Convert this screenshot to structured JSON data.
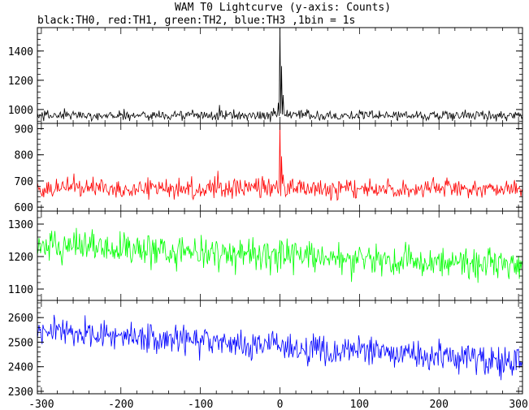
{
  "chart_data": {
    "type": "line",
    "title": "WAM T0 Lightcurve (y-axis: Counts)",
    "subtitle": "black:TH0, red:TH1, green:TH2, blue:TH3 ,1bin = 1s",
    "xlabel": "",
    "ylabel": "",
    "xlim": [
      -305,
      305
    ],
    "x_ticks": [
      -300,
      -200,
      -100,
      0,
      100,
      200,
      300
    ],
    "x_step": 1,
    "panels": [
      {
        "series_name": "TH0",
        "color": "#000000",
        "ylim": [
          905,
          1560
        ],
        "y_ticks": [
          1000,
          1200,
          1400
        ],
        "baseline": 960,
        "noise_amplitude": 35,
        "trend": [
          [
            -300,
            960
          ],
          [
            300,
            960
          ]
        ],
        "peaks": [
          [
            -2,
            1050
          ],
          [
            0,
            1560
          ],
          [
            2,
            1300
          ],
          [
            4,
            1100
          ],
          [
            -76,
            1030
          ]
        ]
      },
      {
        "series_name": "TH1",
        "color": "#ff0000",
        "ylim": [
          585,
          920
        ],
        "y_ticks": [
          600,
          700,
          800,
          900
        ],
        "baseline": 672,
        "noise_amplitude": 38,
        "trend": [
          [
            -300,
            675
          ],
          [
            300,
            668
          ]
        ],
        "peaks": [
          [
            -78,
            740
          ],
          [
            0,
            920
          ],
          [
            2,
            790
          ],
          [
            4,
            720
          ]
        ]
      },
      {
        "series_name": "TH2",
        "color": "#00ff00",
        "ylim": [
          1065,
          1340
        ],
        "y_ticks": [
          1100,
          1200,
          1300
        ],
        "baseline": 1210,
        "noise_amplitude": 48,
        "trend": [
          [
            -300,
            1235
          ],
          [
            300,
            1170
          ]
        ],
        "peaks": []
      },
      {
        "series_name": "TH3",
        "color": "#0000ff",
        "ylim": [
          2290,
          2670
        ],
        "y_ticks": [
          2300,
          2400,
          2500,
          2600
        ],
        "baseline": 2500,
        "noise_amplitude": 60,
        "trend": [
          [
            -300,
            2545
          ],
          [
            300,
            2420
          ]
        ],
        "peaks": []
      }
    ]
  }
}
